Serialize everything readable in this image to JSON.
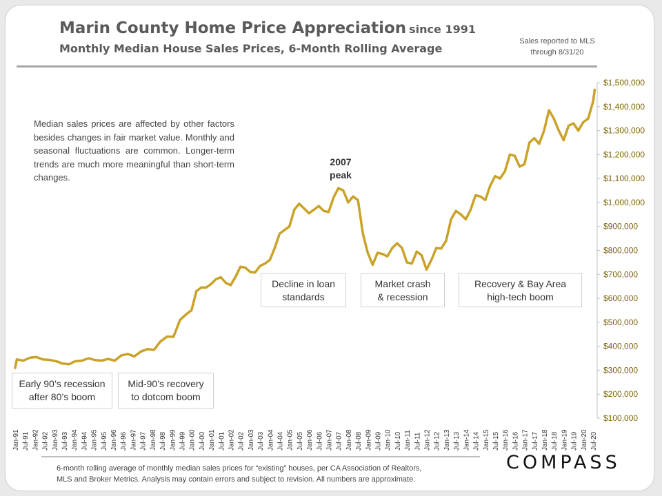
{
  "header": {
    "title": "Marin County Home Price Appreciation",
    "title_suffix": "since 1991",
    "subtitle": "Monthly Median House Sales Prices, 6-Month Rolling Average",
    "note_line1": "Sales reported to MLS",
    "note_line2": "through 8/31/20"
  },
  "annotations": {
    "intro_text": "Median sales prices are affected by other factors besides changes in fair market value. Monthly and seasonal fluctuations are common. Longer-term trends are much more meaningful than short-term changes.",
    "peak_line1": "2007",
    "peak_line2": "peak",
    "box_recession_line1": "Early 90’s recession",
    "box_recession_line2": "after 80’s boom",
    "box_recovery_line1": "Mid-90’s recovery",
    "box_recovery_line2": "to dotcom boom",
    "box_loan_line1": "Decline in loan",
    "box_loan_line2": "standards",
    "box_crash_line1": "Market crash",
    "box_crash_line2": "& recession",
    "box_bayarea_line1": "Recovery & Bay Area",
    "box_bayarea_line2": "high-tech boom"
  },
  "footer": {
    "line1": "6-month rolling average of monthly median sales prices for “existing” houses, per CA Association of Realtors,",
    "line2": "MLS and Broker Metrics.  Analysis may contain errors and subject to revision. All numbers are approximate."
  },
  "logo": "COMPASS",
  "colors": {
    "line": "#c9a227",
    "axis_labels": "#7a6206"
  },
  "chart_data": {
    "type": "line",
    "title": "Marin County Home Price Appreciation since 1991",
    "subtitle": "Monthly Median House Sales Prices, 6-Month Rolling Average",
    "ylim": [
      100000,
      1500000
    ],
    "y_axis_position": "right",
    "grid": false,
    "ytick_labels": [
      "$1,500,000",
      "$1,400,000",
      "$1,300,000",
      "$1,200,000",
      "$1,100,000",
      "$1,000,000",
      "$900,000",
      "$800,000",
      "$700,000",
      "$600,000",
      "$500,000",
      "$400,000",
      "$300,000",
      "$200,000",
      "$100,000"
    ],
    "xtick_labels": [
      "Jan-91",
      "Jul-91",
      "Jan-92",
      "Jul-92",
      "Jan-93",
      "Jul-93",
      "Jan-94",
      "Jul-94",
      "Jan-95",
      "Jul-95",
      "Jan-96",
      "Jul-96",
      "Jan-97",
      "Jul-97",
      "Jan-98",
      "Jul-98",
      "Jan-99",
      "Jul-99",
      "Jan-00",
      "Jul-00",
      "Jan-01",
      "Jul-01",
      "Jan-02",
      "Jul-02",
      "Jan-03",
      "Jul-03",
      "Jan-04",
      "Jul-04",
      "Jan-05",
      "Jul-05",
      "Jan-06",
      "Jul-06",
      "Jan-07",
      "Jul-07",
      "Jan-08",
      "Jul-08",
      "Jan-09",
      "Jul-09",
      "Jan-10",
      "Jul-10",
      "Jan-11",
      "Jul-11",
      "Jan-12",
      "Jul-12",
      "Jan-13",
      "Jul-13",
      "Jan-14",
      "Jul-14",
      "Jan-15",
      "Jul-15",
      "Jan-16",
      "Jul-16",
      "Jan-17",
      "Jul-17",
      "Jan-18",
      "Jul-18",
      "Jan-19",
      "Jul-19",
      "Jan-20",
      "Jul-20"
    ],
    "series": [
      {
        "points": [
          [
            "Jan-91",
            310000
          ],
          [
            "Feb-91",
            345000
          ],
          [
            "Jun-91",
            340000
          ],
          [
            "Oct-91",
            352000
          ],
          [
            "Feb-92",
            355000
          ],
          [
            "Jun-92",
            345000
          ],
          [
            "Oct-92",
            343000
          ],
          [
            "Feb-93",
            338000
          ],
          [
            "Jun-93",
            328000
          ],
          [
            "Oct-93",
            325000
          ],
          [
            "Feb-94",
            338000
          ],
          [
            "Jun-94",
            340000
          ],
          [
            "Oct-94",
            350000
          ],
          [
            "Feb-95",
            342000
          ],
          [
            "Jun-95",
            340000
          ],
          [
            "Oct-95",
            347000
          ],
          [
            "Feb-96",
            340000
          ],
          [
            "Jun-96",
            362000
          ],
          [
            "Oct-96",
            368000
          ],
          [
            "Feb-97",
            358000
          ],
          [
            "Jun-97",
            378000
          ],
          [
            "Oct-97",
            388000
          ],
          [
            "Feb-98",
            385000
          ],
          [
            "Jun-98",
            420000
          ],
          [
            "Oct-98",
            440000
          ],
          [
            "Feb-99",
            440000
          ],
          [
            "Jun-99",
            510000
          ],
          [
            "Oct-99",
            535000
          ],
          [
            "Jan-00",
            550000
          ],
          [
            "Apr-00",
            630000
          ],
          [
            "Jul-00",
            645000
          ],
          [
            "Oct-00",
            645000
          ],
          [
            "Jan-01",
            660000
          ],
          [
            "Apr-01",
            680000
          ],
          [
            "Jul-01",
            688000
          ],
          [
            "Oct-01",
            665000
          ],
          [
            "Jan-02",
            655000
          ],
          [
            "Apr-02",
            690000
          ],
          [
            "Jul-02",
            732000
          ],
          [
            "Oct-02",
            728000
          ],
          [
            "Jan-03",
            710000
          ],
          [
            "Apr-03",
            708000
          ],
          [
            "Jul-03",
            735000
          ],
          [
            "Oct-03",
            745000
          ],
          [
            "Jan-04",
            760000
          ],
          [
            "Apr-04",
            810000
          ],
          [
            "Jul-04",
            870000
          ],
          [
            "Oct-04",
            885000
          ],
          [
            "Jan-05",
            900000
          ],
          [
            "Apr-05",
            970000
          ],
          [
            "Jul-05",
            995000
          ],
          [
            "Oct-05",
            975000
          ],
          [
            "Jan-06",
            955000
          ],
          [
            "Apr-06",
            970000
          ],
          [
            "Jul-06",
            985000
          ],
          [
            "Oct-06",
            965000
          ],
          [
            "Jan-07",
            960000
          ],
          [
            "Apr-07",
            1020000
          ],
          [
            "Jul-07",
            1060000
          ],
          [
            "Oct-07",
            1050000
          ],
          [
            "Jan-08",
            1000000
          ],
          [
            "Apr-08",
            1025000
          ],
          [
            "Jul-08",
            1010000
          ],
          [
            "Oct-08",
            870000
          ],
          [
            "Jan-09",
            790000
          ],
          [
            "Apr-09",
            740000
          ],
          [
            "Jul-09",
            790000
          ],
          [
            "Oct-09",
            785000
          ],
          [
            "Jan-10",
            775000
          ],
          [
            "Apr-10",
            810000
          ],
          [
            "Jul-10",
            830000
          ],
          [
            "Oct-10",
            810000
          ],
          [
            "Jan-11",
            750000
          ],
          [
            "Apr-11",
            745000
          ],
          [
            "Jul-11",
            795000
          ],
          [
            "Oct-11",
            780000
          ],
          [
            "Jan-12",
            720000
          ],
          [
            "Apr-12",
            760000
          ],
          [
            "Jul-12",
            810000
          ],
          [
            "Oct-12",
            808000
          ],
          [
            "Jan-13",
            840000
          ],
          [
            "Apr-13",
            930000
          ],
          [
            "Jul-13",
            965000
          ],
          [
            "Oct-13",
            950000
          ],
          [
            "Jan-14",
            930000
          ],
          [
            "Apr-14",
            970000
          ],
          [
            "Jul-14",
            1030000
          ],
          [
            "Oct-14",
            1025000
          ],
          [
            "Jan-15",
            1010000
          ],
          [
            "Apr-15",
            1070000
          ],
          [
            "Jul-15",
            1110000
          ],
          [
            "Oct-15",
            1100000
          ],
          [
            "Jan-16",
            1130000
          ],
          [
            "Apr-16",
            1200000
          ],
          [
            "Jul-16",
            1195000
          ],
          [
            "Oct-16",
            1150000
          ],
          [
            "Jan-17",
            1160000
          ],
          [
            "Apr-17",
            1250000
          ],
          [
            "Jul-17",
            1268000
          ],
          [
            "Oct-17",
            1245000
          ],
          [
            "Jan-18",
            1300000
          ],
          [
            "Apr-18",
            1385000
          ],
          [
            "Jul-18",
            1350000
          ],
          [
            "Oct-18",
            1300000
          ],
          [
            "Jan-19",
            1260000
          ],
          [
            "Apr-19",
            1320000
          ],
          [
            "Jul-19",
            1330000
          ],
          [
            "Oct-19",
            1300000
          ],
          [
            "Jan-20",
            1335000
          ],
          [
            "Apr-20",
            1350000
          ],
          [
            "Jul-20",
            1420000
          ],
          [
            "Aug-20",
            1470000
          ]
        ]
      }
    ]
  }
}
